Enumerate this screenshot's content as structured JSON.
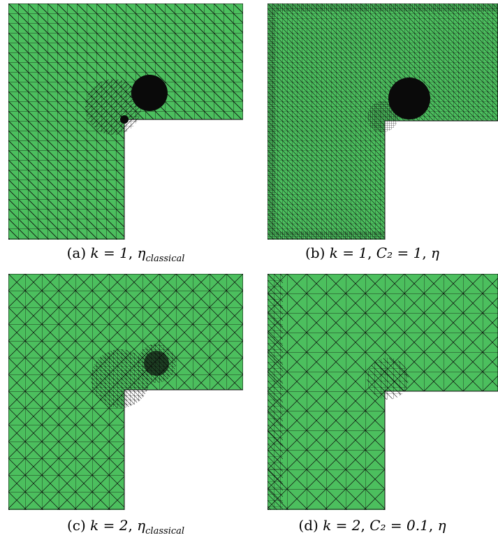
{
  "colors": {
    "mesh_fill": "#4cbf5e",
    "mesh_line": "#0a0a0a",
    "background": "#ffffff"
  },
  "panels": [
    {
      "id": "a",
      "label": "(a)",
      "k": "k = 1",
      "estimator": "η",
      "estimator_sub": "classical",
      "c2": "",
      "mesh": "fine-blob"
    },
    {
      "id": "b",
      "label": "(b)",
      "k": "k = 1",
      "estimator": "η",
      "estimator_sub": "",
      "c2": "C₂ = 1",
      "mesh": "very-fine"
    },
    {
      "id": "c",
      "label": "(c)",
      "k": "k = 2",
      "estimator": "η",
      "estimator_sub": "classical",
      "c2": "",
      "mesh": "medium-blob"
    },
    {
      "id": "d",
      "label": "(d)",
      "k": "k = 2",
      "estimator": "η",
      "estimator_sub": "",
      "c2": "C₂ = 0.1",
      "mesh": "coarse"
    }
  ]
}
